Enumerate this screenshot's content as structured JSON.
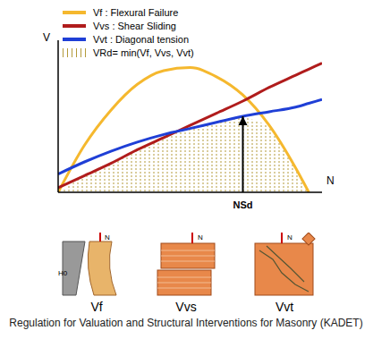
{
  "chart_data": {
    "type": "line",
    "tick_labels": false,
    "x_label": "N",
    "y_label": "V",
    "xlim": [
      0,
      10
    ],
    "ylim": [
      0,
      10
    ],
    "x": [
      0,
      1,
      2,
      3,
      4,
      5,
      6,
      7,
      8,
      9,
      9.5,
      10
    ],
    "series": [
      {
        "name": "Vf",
        "label": "Vf : Flexural Failure",
        "color": "#f5b82e",
        "values": [
          0,
          3.1,
          5.4,
          7.1,
          8.0,
          8.2,
          7.6,
          6.4,
          4.4,
          1.6,
          0,
          null
        ]
      },
      {
        "name": "Vvs",
        "label": "Vvs : Shear Sliding",
        "color": "#b01c1c",
        "values": [
          0.3,
          1.1,
          1.9,
          2.8,
          3.6,
          4.4,
          5.2,
          6.0,
          6.9,
          7.7,
          8.1,
          8.5
        ]
      },
      {
        "name": "Vvt",
        "label": "Vvt : Diagonal tension",
        "color": "#1f3fd6",
        "values": [
          1.2,
          2.0,
          2.7,
          3.3,
          3.8,
          4.2,
          4.6,
          5.0,
          5.3,
          5.6,
          5.85,
          6.1
        ]
      }
    ],
    "envelope": {
      "label": "VRd= min(Vf, Vvs, Vvt)",
      "color": "#b39a3a"
    },
    "annotation": {
      "text": "NSd",
      "x": 7
    },
    "diagrams": [
      {
        "label": "Vf",
        "texts": [
          "N",
          "H0"
        ]
      },
      {
        "label": "Vvs",
        "texts": [
          "N"
        ]
      },
      {
        "label": "Vvt",
        "texts": [
          "N"
        ]
      }
    ],
    "caption": "Regulation for Valuation and Structural Interventions for Masonry (KADET)"
  }
}
